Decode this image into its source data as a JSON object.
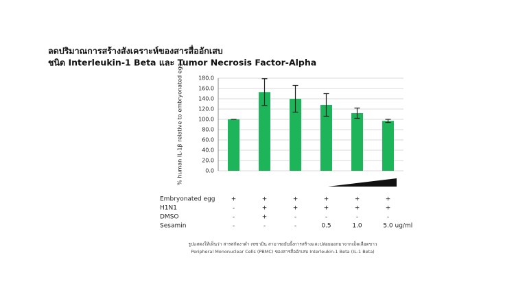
{
  "chart_data": {
    "type": "bar",
    "title": "ลดปริมาณการสร้างสังเคราะห์ของสารสื่ออักเสบ",
    "subtitle": "ชนิด Interleukin-1 Beta และ Tumor Necrosis Factor-Alpha",
    "y_label": "% human IL-1β relative to embryonated egg",
    "values": [
      100,
      153,
      140,
      128,
      112,
      97
    ],
    "errors": [
      0,
      26,
      26,
      22,
      10,
      3
    ],
    "color": "#1db45a",
    "ylim": [
      0,
      180
    ],
    "yticks": [
      {
        "value": 0,
        "label": "0.0"
      },
      {
        "value": 20,
        "label": "20.0"
      },
      {
        "value": 40,
        "label": "40.0"
      },
      {
        "value": 60,
        "label": "60.0"
      },
      {
        "value": 80,
        "label": "80.0"
      },
      {
        "value": 100,
        "label": "100.0"
      },
      {
        "value": 120,
        "label": "120.0"
      },
      {
        "value": 140,
        "label": "140.0"
      },
      {
        "value": 160,
        "label": "160.0"
      },
      {
        "value": 180,
        "label": "180.0"
      }
    ],
    "grid": true,
    "treatments": [
      {
        "label": "Embryonated egg",
        "cells": [
          "+",
          "+",
          "+",
          "+",
          "+",
          "+"
        ]
      },
      {
        "label": "H1N1",
        "cells": [
          "-",
          "+",
          "+",
          "+",
          "+",
          "+"
        ]
      },
      {
        "label": "DMSO",
        "cells": [
          "-",
          "+",
          "-",
          "-",
          "-",
          "-"
        ]
      },
      {
        "label": "Sesamin",
        "cells": [
          "-",
          "-",
          "-",
          "0.5",
          "1.0",
          "5.0"
        ],
        "unit": "ug/ml"
      }
    ],
    "caption": [
      "รูปแสดงให้เห็นว่า สารสกัดงาดำ เซซามิน สามารถยับยั้งการสร้างและปล่อยออกมาจากเม็ดเลือดขาว",
      "Peripheral Mononuclear Cells (PBMC) ของสารสื่ออักเสบ Interleukin-1 Beta (IL-1 Beta)"
    ]
  }
}
